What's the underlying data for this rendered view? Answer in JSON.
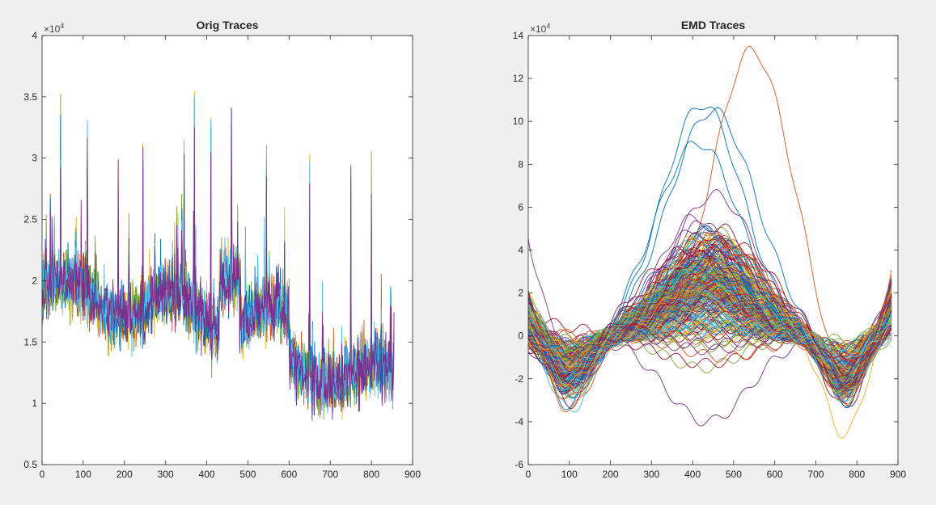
{
  "window": {
    "background": "#f0f0f0"
  },
  "colors": [
    "#0072bd",
    "#d95319",
    "#edb120",
    "#7e2f8e",
    "#77ac30",
    "#4dbeee",
    "#a2142f"
  ],
  "chart_data": [
    {
      "type": "line",
      "title": "Orig Traces",
      "xlabel": "",
      "ylabel": "",
      "xlim": [
        0,
        900
      ],
      "ylim": [
        5000,
        40000
      ],
      "x_ticks": [
        0,
        100,
        200,
        300,
        400,
        500,
        600,
        700,
        800,
        900
      ],
      "y_ticks": [
        0.5,
        1,
        1.5,
        2,
        2.5,
        3,
        3.5,
        4
      ],
      "y_tick_labels": [
        "0.5",
        "1",
        "1.5",
        "2",
        "2.5",
        "3",
        "3.5",
        "4"
      ],
      "y_exponent_label": "×10",
      "y_exponent_power": "4",
      "n_points": 856,
      "n_traces": 6,
      "description_values": {
        "x_range": [
          0,
          855
        ],
        "approx_mean_start": 19000,
        "approx_mean_end": 13000,
        "approx_min": 7800,
        "approx_max": 35500,
        "peak_points": [
          {
            "x": 20,
            "y": 27000
          },
          {
            "x": 45,
            "y": 34500
          },
          {
            "x": 110,
            "y": 33000
          },
          {
            "x": 185,
            "y": 30500
          },
          {
            "x": 245,
            "y": 31200
          },
          {
            "x": 345,
            "y": 33000
          },
          {
            "x": 370,
            "y": 35500
          },
          {
            "x": 410,
            "y": 33500
          },
          {
            "x": 460,
            "y": 34500
          },
          {
            "x": 545,
            "y": 30500
          },
          {
            "x": 650,
            "y": 30000
          },
          {
            "x": 750,
            "y": 29500
          },
          {
            "x": 800,
            "y": 28500
          }
        ]
      },
      "grid": false,
      "legend": "none"
    },
    {
      "type": "line",
      "title": "EMD Traces",
      "xlabel": "",
      "ylabel": "",
      "xlim": [
        0,
        900
      ],
      "ylim": [
        -60000,
        140000
      ],
      "x_ticks": [
        0,
        100,
        200,
        300,
        400,
        500,
        600,
        700,
        800,
        900
      ],
      "y_ticks": [
        -6,
        -4,
        -2,
        0,
        2,
        4,
        6,
        8,
        10,
        12,
        14
      ],
      "y_tick_labels": [
        "-6",
        "-4",
        "-2",
        "0",
        "2",
        "4",
        "6",
        "8",
        "10",
        "12",
        "14"
      ],
      "y_exponent_label": "×10",
      "y_exponent_power": "4",
      "n_points": 886,
      "n_traces": 260,
      "description_values": {
        "x_range": [
          0,
          885
        ],
        "start_value_range": [
          -5000,
          40000
        ],
        "trough1_x": 100,
        "trough1_range": [
          -48000,
          15000
        ],
        "peak_x_range": [
          400,
          550
        ],
        "peak_range": [
          -5000,
          133000
        ],
        "trough2_x": 780,
        "trough2_range": [
          -60000,
          15000
        ],
        "end_value_range": [
          0,
          37000
        ]
      },
      "grid": false,
      "legend": "none"
    }
  ]
}
